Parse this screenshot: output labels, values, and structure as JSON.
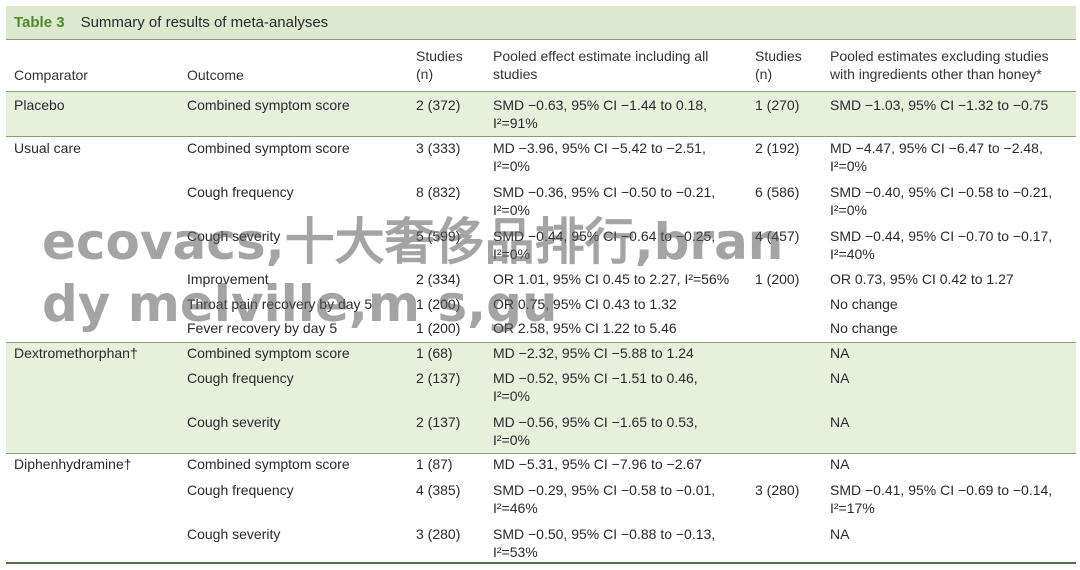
{
  "table": {
    "label": "Table 3",
    "title": "Summary of results of meta-analyses",
    "headers": {
      "comparator": "Comparator",
      "outcome": "Outcome",
      "studies1": [
        "Studies",
        "(n)"
      ],
      "pooled_all": [
        "Pooled effect estimate including all",
        "studies"
      ],
      "studies2": [
        "Studies",
        "(n)"
      ],
      "pooled_excl": [
        "Pooled estimates excluding studies",
        "with ingredients other than honey*"
      ]
    },
    "rows": [
      {
        "comparator": "Placebo",
        "outcome": "Combined symptom score",
        "studies1": "2 (372)",
        "est1": [
          "SMD −0.63, 95% CI −1.44 to 0.18,",
          "I²=91%"
        ],
        "studies2": "1 (270)",
        "est2": [
          "SMD −1.03, 95% CI −1.32 to −0.75"
        ]
      },
      {
        "comparator": "Usual care",
        "outcome": "Combined symptom score",
        "studies1": "3 (333)",
        "est1": [
          "MD −3.96, 95% CI −5.42 to −2.51,",
          "I²=0%"
        ],
        "studies2": "2 (192)",
        "est2": [
          "MD −4.47, 95% CI −6.47 to −2.48,",
          "I²=0%"
        ]
      },
      {
        "comparator": "",
        "outcome": "Cough frequency",
        "studies1": "8 (832)",
        "est1": [
          "SMD −0.36, 95% CI −0.50 to −0.21,",
          "I²=0%"
        ],
        "studies2": "6 (586)",
        "est2": [
          "SMD −0.40, 95% CI −0.58 to −0.21,",
          "I²=0%"
        ]
      },
      {
        "comparator": "",
        "outcome": "Cough severity",
        "studies1": "5 (599)",
        "est1": [
          "SMD −0.44, 95% CI −0.64 to −0.25,",
          "I²=0%"
        ],
        "studies2": "4 (457)",
        "est2": [
          "SMD −0.44, 95% CI −0.70 to −0.17,",
          "I²=40%"
        ]
      },
      {
        "comparator": "",
        "outcome": "Improvement",
        "studies1": "2 (334)",
        "est1": [
          "OR 1.01, 95% CI 0.45 to 2.27, I²=56%"
        ],
        "studies2": "1 (200)",
        "est2": [
          "OR 0.73, 95% CI 0.42 to 1.27"
        ]
      },
      {
        "comparator": "",
        "outcome": "Throat pain recovery by day 5",
        "studies1": "1 (200)",
        "est1": [
          "OR 0.75, 95% CI 0.43 to 1.32"
        ],
        "studies2": "",
        "est2": [
          "No change"
        ]
      },
      {
        "comparator": "",
        "outcome": "Fever recovery by day 5",
        "studies1": "1 (200)",
        "est1": [
          "OR 2.58, 95% CI 1.22 to 5.46"
        ],
        "studies2": "",
        "est2": [
          "No change"
        ]
      },
      {
        "comparator": "Dextromethorphan†",
        "outcome": "Combined symptom score",
        "studies1": "1 (68)",
        "est1": [
          "MD −2.32, 95% CI −5.88 to 1.24"
        ],
        "studies2": "",
        "est2": [
          "NA"
        ]
      },
      {
        "comparator": "",
        "outcome": "Cough frequency",
        "studies1": "2 (137)",
        "est1": [
          "MD −0.52, 95% CI −1.51 to 0.46,",
          "I²=0%"
        ],
        "studies2": "",
        "est2": [
          "NA"
        ]
      },
      {
        "comparator": "",
        "outcome": "Cough severity",
        "studies1": "2 (137)",
        "est1": [
          "MD −0.56, 95% CI −1.65 to 0.53,",
          "I²=0%"
        ],
        "studies2": "",
        "est2": [
          "NA"
        ]
      },
      {
        "comparator": "Diphenhydramine†",
        "outcome": "Combined symptom score",
        "studies1": "1 (87)",
        "est1": [
          "MD −5.31, 95% CI −7.96 to −2.67"
        ],
        "studies2": "",
        "est2": [
          "NA"
        ]
      },
      {
        "comparator": "",
        "outcome": "Cough frequency",
        "studies1": "4 (385)",
        "est1": [
          "SMD −0.29, 95% CI −0.58 to −0.01,",
          "I²=46%"
        ],
        "studies2": "3 (280)",
        "est2": [
          "SMD −0.41, 95% CI −0.69 to −0.14,",
          "I²=17%"
        ]
      },
      {
        "comparator": "",
        "outcome": "Cough severity",
        "studies1": "3 (280)",
        "est1": [
          "SMD −0.50, 95% CI −0.88 to −0.13,",
          "I²=53%"
        ],
        "studies2": "",
        "est2": [
          "NA"
        ]
      }
    ]
  },
  "watermark": "ecovacs,十大奢侈品排行,brandy melville,m s,gu",
  "colors": {
    "accent": "#4d8a2f",
    "band": "#e6f0dc",
    "header_bg": "#dce9cf",
    "rule": "#8aa070"
  }
}
